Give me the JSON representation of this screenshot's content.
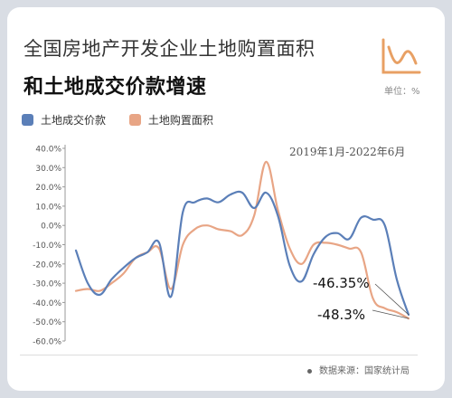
{
  "header": {
    "title_line1": "全国房地产开发企业土地购置面积",
    "title_line2": "和土地成交价款增速",
    "unit": "单位：%"
  },
  "date_range": "2019年1月-2022年6月",
  "source": "数据来源：国家统计局",
  "colors": {
    "blue": "#5b7fb8",
    "orange": "#e8a585",
    "axis": "#999999",
    "grid": "#dddddd"
  },
  "chart_data": {
    "type": "line",
    "title": "全国房地产开发企业土地购置面积和土地成交价款增速",
    "subtitle": "2019年1月-2022年6月",
    "xlabel": "",
    "ylabel": "单位：%",
    "ylim": [
      -60,
      40
    ],
    "y_ticks": [
      "40.0%",
      "30.0%",
      "20.0%",
      "10.0%",
      "0.0%",
      "-10.0%",
      "-20.0%",
      "-30.0%",
      "-40.0%",
      "-50.0%",
      "-60.0%"
    ],
    "grid": false,
    "legend": "top-left",
    "series": [
      {
        "name": "土地成交价款",
        "color": "#5b7fb8",
        "values": [
          -13,
          -30,
          -36,
          -28,
          -22,
          -17,
          -14,
          -9,
          -37,
          7,
          12,
          14,
          12,
          16,
          17,
          9,
          17,
          5,
          -21,
          -29,
          -15,
          -6,
          -4,
          -7,
          4,
          3,
          0,
          -28,
          -46.35
        ]
      },
      {
        "name": "土地购置面积",
        "color": "#e8a585",
        "values": [
          -34,
          -33,
          -34,
          -30,
          -25,
          -17,
          -14,
          -12,
          -33,
          -10,
          -2,
          0,
          -2,
          -3,
          -5,
          5,
          33,
          8,
          -12,
          -20,
          -10,
          -9,
          -10,
          -12,
          -14,
          -38,
          -43,
          -45,
          -48.3
        ]
      }
    ],
    "annotations": [
      {
        "label": "-46.35%",
        "series": "土地成交价款",
        "value": -46.35
      },
      {
        "label": "-48.3%",
        "series": "土地购置面积",
        "value": -48.3
      }
    ]
  }
}
